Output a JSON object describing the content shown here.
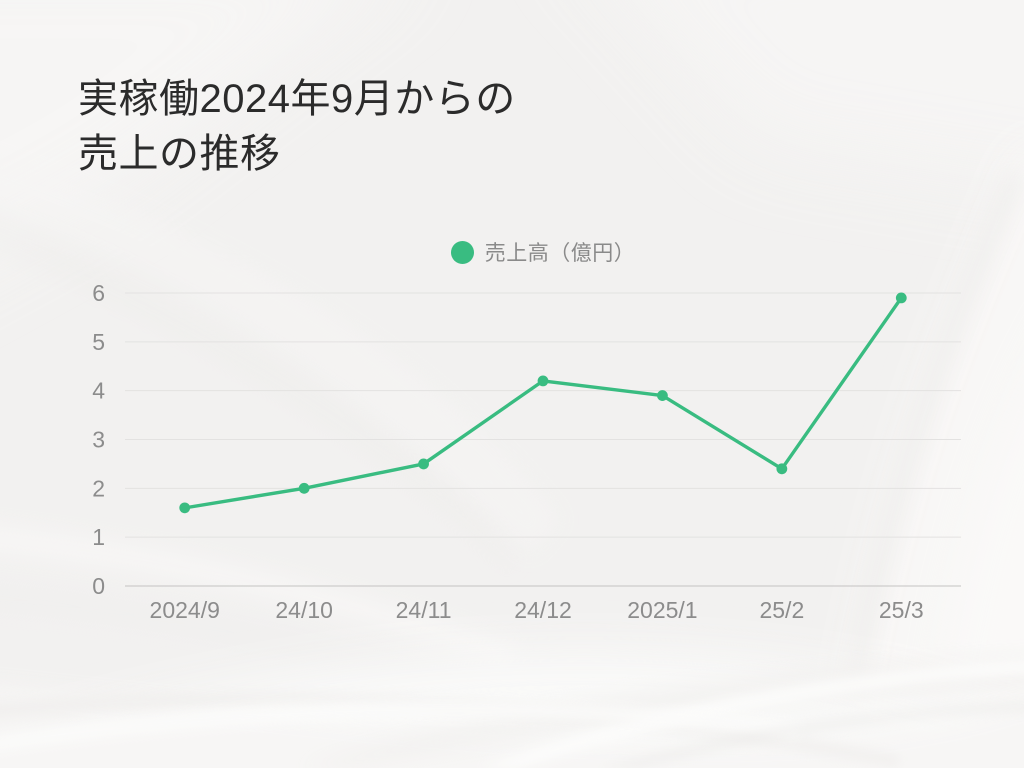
{
  "slide": {
    "title_line1": "実稼働2024年9月からの",
    "title_line2": "売上の推移",
    "background_base_color": "#f2f1f0",
    "title_color": "#2b2b2b"
  },
  "chart_data": {
    "type": "line",
    "title": "実稼働2024年9月からの売上の推移",
    "categories": [
      "2024/9",
      "24/10",
      "24/11",
      "24/12",
      "2025/1",
      "25/2",
      "25/3"
    ],
    "series": [
      {
        "name": "売上高（億円）",
        "values": [
          1.6,
          2.0,
          2.5,
          4.2,
          3.9,
          2.4,
          5.9
        ],
        "color": "#39bc81"
      }
    ],
    "xlabel": "",
    "ylabel": "",
    "ylim": [
      0,
      6
    ],
    "y_ticks": [
      0,
      1,
      2,
      3,
      4,
      5,
      6
    ],
    "grid": true,
    "legend_position": "top-center",
    "legend_marker": "circle",
    "gridline_color": "#e3e2e1",
    "axis_line_color": "#c4c3c2",
    "axis_label_color": "#8c8c8c"
  }
}
